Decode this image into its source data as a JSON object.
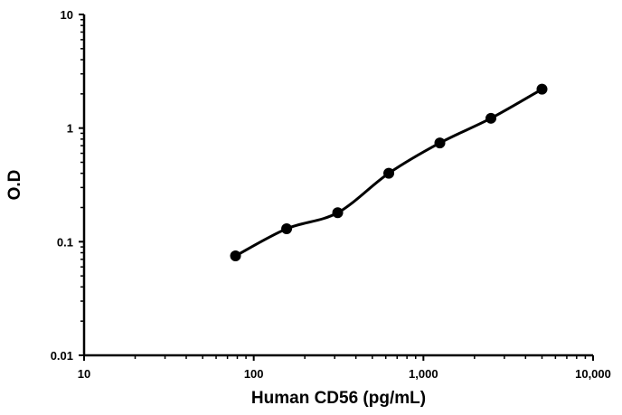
{
  "chart_data": {
    "type": "line",
    "xlabel": "Human CD56 (pg/mL)",
    "ylabel": "O.D",
    "x_scale": "log",
    "y_scale": "log",
    "xlim": [
      10,
      10000
    ],
    "ylim": [
      0.01,
      10
    ],
    "x_ticks": [
      {
        "value": 10,
        "label": "10"
      },
      {
        "value": 100,
        "label": "100"
      },
      {
        "value": 1000,
        "label": "1,000"
      },
      {
        "value": 10000,
        "label": "10,000"
      }
    ],
    "y_ticks": [
      {
        "value": 0.01,
        "label": "0.01"
      },
      {
        "value": 0.1,
        "label": "0.1"
      },
      {
        "value": 1,
        "label": "1"
      },
      {
        "value": 10,
        "label": "10"
      }
    ],
    "grid": false,
    "series": [
      {
        "color": "#000000",
        "marker": "circle",
        "x": [
          78.1,
          156.3,
          312.5,
          625,
          1250,
          2500,
          5000
        ],
        "y": [
          0.075,
          0.13,
          0.18,
          0.4,
          0.74,
          1.22,
          2.2
        ]
      }
    ]
  }
}
